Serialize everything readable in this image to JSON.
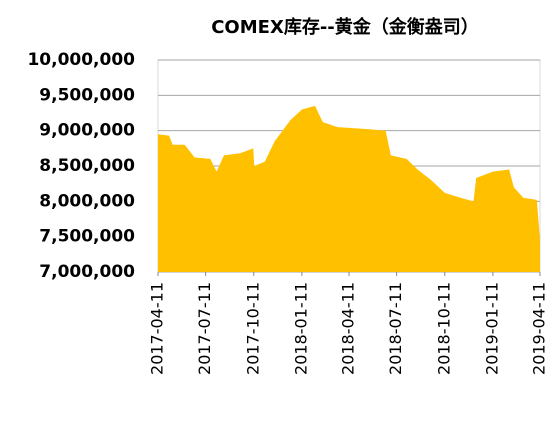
{
  "chart_data": {
    "type": "area",
    "title": "COMEX库存--黄金（金衡盎司）",
    "color": "#ffc000",
    "grid": true,
    "x": [
      "2017-04-11",
      "2017-05-02",
      "2017-05-09",
      "2017-06-01",
      "2017-06-20",
      "2017-07-20",
      "2017-08-01",
      "2017-08-15",
      "2017-09-15",
      "2017-10-10",
      "2017-10-12",
      "2017-11-01",
      "2017-11-20",
      "2017-12-20",
      "2018-01-11",
      "2018-02-05",
      "2018-02-20",
      "2018-03-20",
      "2018-04-11",
      "2018-05-20",
      "2018-06-20",
      "2018-06-30",
      "2018-07-30",
      "2018-08-20",
      "2018-09-15",
      "2018-10-11",
      "2018-11-10",
      "2018-12-05",
      "2018-12-10",
      "2019-01-11",
      "2019-02-11",
      "2019-02-20",
      "2019-03-10",
      "2019-04-05",
      "2019-04-11"
    ],
    "values": [
      8950000,
      8930000,
      8800000,
      8800000,
      8620000,
      8600000,
      8420000,
      8650000,
      8680000,
      8750000,
      8500000,
      8560000,
      8850000,
      9150000,
      9300000,
      9350000,
      9120000,
      9050000,
      9040000,
      9020000,
      9000000,
      8650000,
      8600000,
      8450000,
      8300000,
      8120000,
      8050000,
      8000000,
      8330000,
      8420000,
      8450000,
      8200000,
      8050000,
      8020000,
      7450000
    ],
    "xlim": [
      "2017-04-11",
      "2019-04-11"
    ],
    "xticks": [
      "2017-04-11",
      "2017-07-11",
      "2017-10-11",
      "2018-01-11",
      "2018-04-11",
      "2018-07-11",
      "2018-10-11",
      "2019-01-11",
      "2019-04-11"
    ],
    "ylim": [
      7000000,
      10000000
    ],
    "yticks": [
      {
        "value": 7000000,
        "label": "7,000,000"
      },
      {
        "value": 7500000,
        "label": "7,500,000"
      },
      {
        "value": 8000000,
        "label": "8,000,000"
      },
      {
        "value": 8500000,
        "label": "8,500,000"
      },
      {
        "value": 9000000,
        "label": "9,000,000"
      },
      {
        "value": 9500000,
        "label": "9,500,000"
      },
      {
        "value": 10000000,
        "label": "10,000,000"
      }
    ]
  }
}
